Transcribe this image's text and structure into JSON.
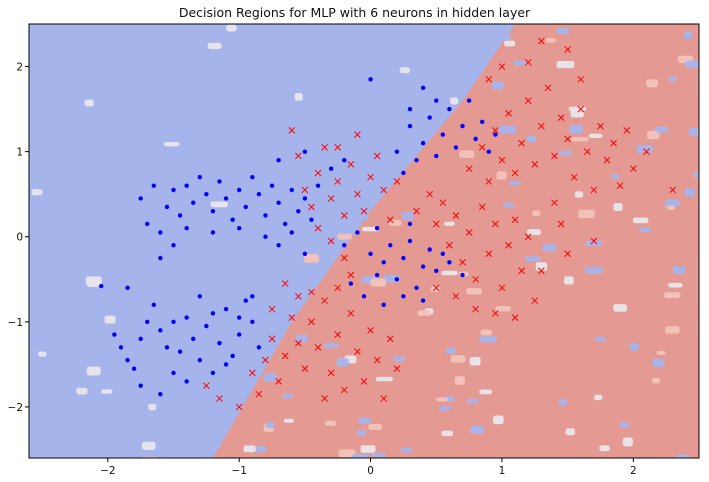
{
  "chart_data": {
    "type": "scatter",
    "title": "Decision Regions for MLP with 6 neurons in hidden layer",
    "xlabel": "",
    "ylabel": "",
    "xlim": [
      -2.6,
      2.5
    ],
    "ylim": [
      -2.6,
      2.5
    ],
    "xticks": [
      -2,
      -1,
      0,
      1,
      2
    ],
    "yticks": [
      -2,
      -1,
      0,
      1,
      2
    ],
    "xtick_labels": [
      "−2",
      "−1",
      "0",
      "1",
      "2"
    ],
    "ytick_labels": [
      "−2",
      "−1",
      "0",
      "1",
      "2"
    ],
    "grid": false,
    "legend": "none",
    "colors": {
      "region_blue": "#a6b4ec",
      "region_red": "#e49a92",
      "region_white": "#e9e6ec",
      "region_edge_red": "#f2c3bb",
      "class0": "#0000ff",
      "class1": "#ff0000"
    },
    "decision_boundary": {
      "description_points": [
        [
          -1.2,
          -2.6
        ],
        [
          -0.6,
          -1.0
        ],
        [
          0.0,
          0.3
        ],
        [
          0.7,
          1.6
        ],
        [
          1.1,
          2.5
        ]
      ]
    },
    "series": [
      {
        "marker": "dot",
        "color": "#0000ff",
        "points": [
          [
            -2.05,
            -0.58
          ],
          [
            -1.95,
            -1.15
          ],
          [
            -1.9,
            -1.3
          ],
          [
            -1.85,
            -1.45
          ],
          [
            -1.8,
            -1.55
          ],
          [
            -1.75,
            -1.2
          ],
          [
            -1.7,
            -1.0
          ],
          [
            -1.65,
            -0.8
          ],
          [
            -1.6,
            -1.1
          ],
          [
            -1.55,
            -1.3
          ],
          [
            -1.5,
            -1.6
          ],
          [
            -1.45,
            -1.35
          ],
          [
            -1.4,
            -0.95
          ],
          [
            -1.35,
            -1.2
          ],
          [
            -1.3,
            -1.45
          ],
          [
            -1.25,
            -1.05
          ],
          [
            -1.2,
            -1.6
          ],
          [
            -1.15,
            -1.25
          ],
          [
            -1.1,
            -0.85
          ],
          [
            -1.05,
            -1.4
          ],
          [
            -1.0,
            -1.15
          ],
          [
            -0.95,
            -0.75
          ],
          [
            -0.9,
            -1.0
          ],
          [
            -0.85,
            -1.3
          ],
          [
            -1.85,
            -0.6
          ],
          [
            -1.75,
            -1.75
          ],
          [
            -1.6,
            -1.85
          ],
          [
            -1.5,
            -1.0
          ],
          [
            -1.4,
            -1.7
          ],
          [
            -1.3,
            -0.7
          ],
          [
            -1.2,
            -0.9
          ],
          [
            -1.1,
            -1.5
          ],
          [
            -1.0,
            -0.95
          ],
          [
            -0.9,
            -0.7
          ],
          [
            -1.75,
            0.45
          ],
          [
            -1.7,
            0.15
          ],
          [
            -1.65,
            0.6
          ],
          [
            -1.6,
            0.05
          ],
          [
            -1.55,
            0.35
          ],
          [
            -1.5,
            0.55
          ],
          [
            -1.45,
            0.25
          ],
          [
            -1.4,
            0.6
          ],
          [
            -1.35,
            0.4
          ],
          [
            -1.3,
            0.7
          ],
          [
            -1.25,
            0.5
          ],
          [
            -1.2,
            0.3
          ],
          [
            -1.15,
            0.65
          ],
          [
            -1.1,
            0.45
          ],
          [
            -1.05,
            0.2
          ],
          [
            -1.0,
            0.55
          ],
          [
            -0.95,
            0.35
          ],
          [
            -0.9,
            0.7
          ],
          [
            -0.85,
            0.5
          ],
          [
            -0.8,
            0.25
          ],
          [
            -0.75,
            0.6
          ],
          [
            -0.7,
            0.4
          ],
          [
            -0.65,
            0.15
          ],
          [
            -0.6,
            0.55
          ],
          [
            -0.55,
            0.3
          ],
          [
            -0.5,
            0.45
          ],
          [
            -0.45,
            0.2
          ],
          [
            -0.4,
            0.6
          ],
          [
            -1.6,
            -0.25
          ],
          [
            -1.5,
            -0.1
          ],
          [
            -1.4,
            0.1
          ],
          [
            -1.2,
            0.05
          ],
          [
            -1.0,
            0.1
          ],
          [
            -0.8,
            0.0
          ],
          [
            -0.7,
            -0.1
          ],
          [
            -0.6,
            0.05
          ],
          [
            -0.5,
            -0.2
          ],
          [
            -0.3,
            0.8
          ],
          [
            -0.2,
            0.9
          ],
          [
            -0.5,
            1.0
          ],
          [
            -0.7,
            0.9
          ],
          [
            -0.2,
            -0.1
          ],
          [
            -0.1,
            0.05
          ],
          [
            0.0,
            -0.2
          ],
          [
            0.05,
            -0.45
          ],
          [
            0.1,
            -0.3
          ],
          [
            0.15,
            -0.1
          ],
          [
            0.2,
            -0.5
          ],
          [
            0.25,
            -0.25
          ],
          [
            0.3,
            -0.05
          ],
          [
            0.35,
            -0.6
          ],
          [
            0.4,
            -0.35
          ],
          [
            0.45,
            -0.15
          ],
          [
            0.5,
            -0.4
          ],
          [
            0.55,
            -0.2
          ],
          [
            -0.15,
            -0.55
          ],
          [
            -0.05,
            -0.7
          ],
          [
            0.1,
            -0.8
          ],
          [
            0.25,
            -0.7
          ],
          [
            0.4,
            -0.75
          ],
          [
            0.6,
            -0.3
          ],
          [
            0.7,
            -0.45
          ],
          [
            0.05,
            0.1
          ],
          [
            0.3,
            0.15
          ],
          [
            0.2,
            1.0
          ],
          [
            0.3,
            1.3
          ],
          [
            0.35,
            0.9
          ],
          [
            0.4,
            1.1
          ],
          [
            0.45,
            1.4
          ],
          [
            0.5,
            0.95
          ],
          [
            0.55,
            1.2
          ],
          [
            0.6,
            1.5
          ],
          [
            0.65,
            1.05
          ],
          [
            0.7,
            1.3
          ],
          [
            0.75,
            1.6
          ],
          [
            0.8,
            1.15
          ],
          [
            0.85,
            1.35
          ],
          [
            0.9,
            1.0
          ],
          [
            0.5,
            1.6
          ],
          [
            0.4,
            1.75
          ],
          [
            0.3,
            1.5
          ],
          [
            0.25,
            0.75
          ],
          [
            0.0,
            1.85
          ],
          [
            0.95,
            1.2
          ]
        ]
      },
      {
        "marker": "x",
        "color": "#ff0000",
        "points": [
          [
            -1.25,
            -1.75
          ],
          [
            -1.15,
            -1.9
          ],
          [
            -1.0,
            -2.0
          ],
          [
            -0.9,
            -1.6
          ],
          [
            -0.85,
            -1.85
          ],
          [
            -0.8,
            -1.45
          ],
          [
            -0.75,
            -1.2
          ],
          [
            -0.7,
            -1.7
          ],
          [
            -0.65,
            -1.4
          ],
          [
            -0.6,
            -0.95
          ],
          [
            -0.55,
            -1.25
          ],
          [
            -0.5,
            -1.55
          ],
          [
            -0.45,
            -1.0
          ],
          [
            -0.4,
            -1.3
          ],
          [
            -0.35,
            -0.75
          ],
          [
            -0.3,
            -1.6
          ],
          [
            -0.25,
            -1.15
          ],
          [
            -0.2,
            -1.8
          ],
          [
            -0.15,
            -0.9
          ],
          [
            -0.1,
            -1.35
          ],
          [
            -0.05,
            -1.7
          ],
          [
            0.0,
            -1.1
          ],
          [
            0.05,
            -1.45
          ],
          [
            0.1,
            -1.9
          ],
          [
            0.15,
            -1.2
          ],
          [
            0.2,
            -1.55
          ],
          [
            -0.35,
            -1.9
          ],
          [
            -0.25,
            -0.6
          ],
          [
            -0.15,
            -0.45
          ],
          [
            -0.45,
            -0.65
          ],
          [
            -0.55,
            -0.7
          ],
          [
            -0.65,
            -0.55
          ],
          [
            -0.75,
            -0.85
          ],
          [
            -0.6,
            1.25
          ],
          [
            -0.55,
            0.95
          ],
          [
            -0.5,
            0.55
          ],
          [
            -0.45,
            0.35
          ],
          [
            -0.4,
            0.75
          ],
          [
            -0.35,
            1.05
          ],
          [
            -0.3,
            0.45
          ],
          [
            -0.25,
            0.65
          ],
          [
            -0.2,
            0.25
          ],
          [
            -0.15,
            0.85
          ],
          [
            -0.1,
            0.5
          ],
          [
            -0.05,
            0.3
          ],
          [
            0.0,
            0.7
          ],
          [
            0.05,
            0.95
          ],
          [
            0.1,
            0.55
          ],
          [
            0.15,
            0.2
          ],
          [
            0.2,
            0.65
          ],
          [
            -0.4,
            0.1
          ],
          [
            -0.3,
            -0.05
          ],
          [
            -0.2,
            -0.25
          ],
          [
            -0.1,
            1.2
          ],
          [
            -0.25,
            1.05
          ],
          [
            0.5,
            0.15
          ],
          [
            0.55,
            0.4
          ],
          [
            0.6,
            -0.1
          ],
          [
            0.65,
            0.25
          ],
          [
            0.7,
            -0.3
          ],
          [
            0.75,
            0.05
          ],
          [
            0.8,
            -0.5
          ],
          [
            0.85,
            0.35
          ],
          [
            0.9,
            -0.2
          ],
          [
            0.95,
            0.15
          ],
          [
            1.0,
            -0.6
          ],
          [
            1.05,
            -0.1
          ],
          [
            1.1,
            0.2
          ],
          [
            1.15,
            -0.4
          ],
          [
            1.2,
            0.0
          ],
          [
            1.25,
            -0.75
          ],
          [
            0.8,
            -0.85
          ],
          [
            0.65,
            -0.7
          ],
          [
            0.95,
            -0.9
          ],
          [
            1.1,
            -0.95
          ],
          [
            0.5,
            -0.6
          ],
          [
            0.45,
            0.5
          ],
          [
            0.35,
            0.3
          ],
          [
            0.75,
            0.8
          ],
          [
            0.85,
            1.05
          ],
          [
            0.9,
            0.65
          ],
          [
            0.95,
            1.25
          ],
          [
            1.0,
            0.9
          ],
          [
            1.05,
            1.45
          ],
          [
            1.1,
            0.75
          ],
          [
            1.15,
            1.1
          ],
          [
            1.2,
            1.6
          ],
          [
            1.25,
            0.85
          ],
          [
            1.3,
            1.3
          ],
          [
            1.35,
            1.75
          ],
          [
            1.4,
            0.95
          ],
          [
            1.45,
            1.4
          ],
          [
            1.5,
            1.15
          ],
          [
            1.55,
            0.7
          ],
          [
            1.6,
            1.5
          ],
          [
            1.65,
            1.0
          ],
          [
            1.7,
            0.55
          ],
          [
            1.75,
            1.3
          ],
          [
            1.8,
            0.9
          ],
          [
            1.85,
            1.1
          ],
          [
            1.9,
            0.6
          ],
          [
            1.95,
            1.25
          ],
          [
            2.0,
            0.8
          ],
          [
            2.1,
            1.0
          ],
          [
            1.3,
            2.3
          ],
          [
            1.5,
            2.2
          ],
          [
            1.2,
            2.05
          ],
          [
            1.0,
            2.0
          ],
          [
            0.9,
            1.85
          ],
          [
            1.6,
            1.85
          ],
          [
            1.4,
            0.4
          ],
          [
            1.5,
            -0.2
          ],
          [
            1.3,
            -0.4
          ],
          [
            1.45,
            0.15
          ],
          [
            1.7,
            -0.05
          ],
          [
            2.3,
            0.55
          ]
        ]
      }
    ]
  }
}
